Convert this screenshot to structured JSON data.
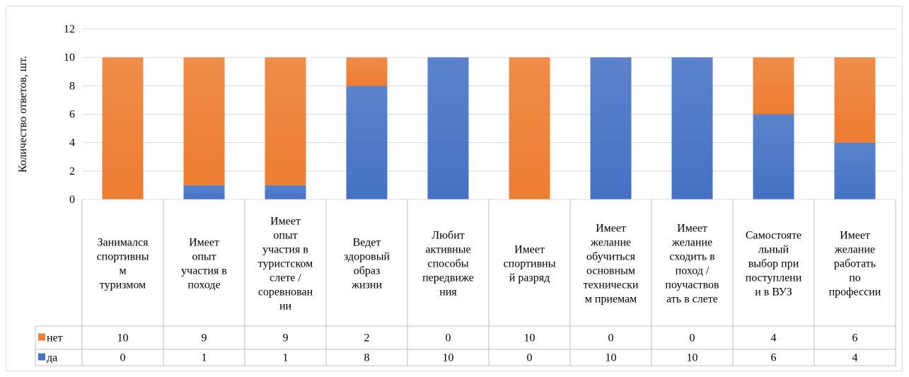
{
  "chart_data": {
    "type": "bar",
    "stacked": true,
    "ylabel": "Количество ответов, шт.",
    "xlabel": "",
    "ylim": [
      0,
      12
    ],
    "yticks": [
      0,
      2,
      4,
      6,
      8,
      10,
      12
    ],
    "grid": true,
    "legend": "data-table-left",
    "categories": [
      [
        "Занимался",
        "спортивны",
        "м",
        "туризмом"
      ],
      [
        "Имеет",
        "опыт",
        "участия в",
        "походе"
      ],
      [
        "Имеет",
        "опыт",
        "участия в",
        "туристском",
        "слете /",
        "соревнован",
        "ии"
      ],
      [
        "Ведет",
        "здоровый",
        "образ",
        "жизни"
      ],
      [
        "Любит",
        "активные",
        "способы",
        "передвиже",
        "ния"
      ],
      [
        "Имеет",
        "спортивны",
        "й разряд"
      ],
      [
        "Имеет",
        "желание",
        "обучиться",
        "основным",
        "технически",
        "м приемам"
      ],
      [
        "Имеет",
        "желание",
        "сходить в",
        "поход /",
        "поучаствов",
        "ать в слете"
      ],
      [
        "Самостояте",
        "льный",
        "выбор при",
        "поступлени",
        "и в ВУЗ"
      ],
      [
        "Имеет",
        "желание",
        "работать",
        "по",
        "профессии"
      ]
    ],
    "series": [
      {
        "name": "нет",
        "color": "#ed7d31",
        "values": [
          10,
          9,
          9,
          2,
          0,
          10,
          0,
          0,
          4,
          6
        ]
      },
      {
        "name": "да",
        "color": "#4472c4",
        "values": [
          0,
          1,
          1,
          8,
          10,
          0,
          10,
          10,
          6,
          4
        ]
      }
    ]
  }
}
